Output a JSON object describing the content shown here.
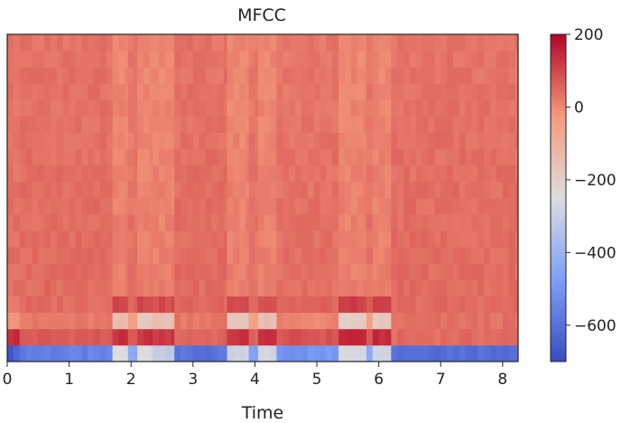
{
  "chart_data": {
    "type": "heatmap",
    "title": "MFCC",
    "xlabel": "Time",
    "ylabel": "",
    "xlim": [
      0,
      8.25
    ],
    "x_ticks": [
      0,
      1,
      2,
      3,
      4,
      5,
      6,
      7,
      8
    ],
    "x_tick_labels": [
      "0",
      "1",
      "2",
      "3",
      "4",
      "5",
      "6",
      "7",
      "8"
    ],
    "n_coefficients": 20,
    "colorbar": {
      "cmap": "coolwarm",
      "vmin": -700,
      "vmax": 200,
      "ticks": [
        200,
        0,
        -200,
        -400,
        -600
      ],
      "tick_labels": [
        "200",
        "0",
        "−200",
        "−400",
        "−600"
      ]
    },
    "time_segments": [
      {
        "start": 0.0,
        "end": 0.2,
        "row0": -650,
        "row1": 140,
        "row2": -5,
        "row3": 25,
        "upper": 40
      },
      {
        "start": 0.2,
        "end": 1.7,
        "row0": -560,
        "row1": 70,
        "row2": 20,
        "row3": 45,
        "upper": 45
      },
      {
        "start": 1.7,
        "end": 1.95,
        "row0": -250,
        "row1": 130,
        "row2": -150,
        "row3": 110,
        "upper": 15
      },
      {
        "start": 1.95,
        "end": 2.1,
        "row0": -450,
        "row1": 60,
        "row2": -40,
        "row3": 60,
        "upper": 35
      },
      {
        "start": 2.1,
        "end": 2.35,
        "row0": -250,
        "row1": 130,
        "row2": -170,
        "row3": 100,
        "upper": 15
      },
      {
        "start": 2.35,
        "end": 2.7,
        "row0": -300,
        "row1": 120,
        "row2": -150,
        "row3": 90,
        "upper": 15
      },
      {
        "start": 2.7,
        "end": 3.55,
        "row0": -600,
        "row1": 55,
        "row2": 30,
        "row3": 50,
        "upper": 45
      },
      {
        "start": 3.55,
        "end": 3.9,
        "row0": -300,
        "row1": 130,
        "row2": -170,
        "row3": 95,
        "upper": 15
      },
      {
        "start": 3.9,
        "end": 4.05,
        "row0": -460,
        "row1": 60,
        "row2": -40,
        "row3": 60,
        "upper": 35
      },
      {
        "start": 4.05,
        "end": 4.35,
        "row0": -280,
        "row1": 130,
        "row2": -150,
        "row3": 90,
        "upper": 15
      },
      {
        "start": 4.35,
        "end": 5.35,
        "row0": -500,
        "row1": 80,
        "row2": 5,
        "row3": 55,
        "upper": 40
      },
      {
        "start": 5.35,
        "end": 5.8,
        "row0": -250,
        "row1": 150,
        "row2": -200,
        "row3": 110,
        "upper": 15
      },
      {
        "start": 5.8,
        "end": 5.9,
        "row0": -450,
        "row1": 60,
        "row2": -40,
        "row3": 55,
        "upper": 35
      },
      {
        "start": 5.9,
        "end": 6.2,
        "row0": -260,
        "row1": 140,
        "row2": -180,
        "row3": 100,
        "upper": 15
      },
      {
        "start": 6.2,
        "end": 8.25,
        "row0": -600,
        "row1": 45,
        "row2": 35,
        "row3": 45,
        "upper": 45
      }
    ]
  }
}
